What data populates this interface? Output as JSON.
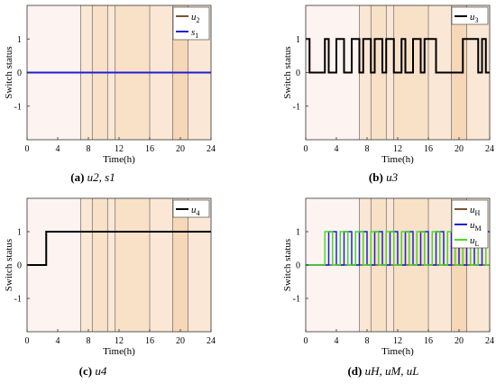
{
  "band_colors": [
    "#fdf3f0",
    "#fbe7d5",
    "#f9e1c8",
    "#f6d7b8"
  ],
  "y_tick_labels": [
    "1",
    "0",
    "-1"
  ],
  "x_tick_labels": [
    "0",
    "4",
    "8",
    "12",
    "16",
    "20",
    "24"
  ],
  "chart_data": [
    {
      "type": "line",
      "caption_letter": "(a)",
      "caption_text": "u2, s1",
      "xlabel": "Time(h)",
      "ylabel": "Switch status",
      "xlim": [
        0,
        24
      ],
      "ylim": [
        -2,
        2
      ],
      "bands": [
        {
          "from": 0,
          "to": 7,
          "level": 0
        },
        {
          "from": 7,
          "to": 8.5,
          "level": 1
        },
        {
          "from": 8.5,
          "to": 10.5,
          "level": 2
        },
        {
          "from": 10.5,
          "to": 11.5,
          "level": 1
        },
        {
          "from": 11.5,
          "to": 16,
          "level": 2
        },
        {
          "from": 16,
          "to": 19,
          "level": 1
        },
        {
          "from": 19,
          "to": 21,
          "level": 3
        },
        {
          "from": 21,
          "to": 24,
          "level": 1
        }
      ],
      "series": [
        {
          "name": "u2",
          "color": "#7a5230",
          "width": 2,
          "x": [
            0,
            24
          ],
          "y": [
            0,
            0
          ]
        },
        {
          "name": "s1",
          "color": "#1f1fd6",
          "width": 2,
          "x": [
            0,
            24
          ],
          "y": [
            0,
            0
          ]
        }
      ]
    },
    {
      "type": "line",
      "caption_letter": "(b)",
      "caption_text": "u3",
      "xlabel": "Time(h)",
      "ylabel": "Switch status",
      "xlim": [
        0,
        24
      ],
      "ylim": [
        -2,
        2
      ],
      "bands": [
        {
          "from": 0,
          "to": 7,
          "level": 0
        },
        {
          "from": 7,
          "to": 8.5,
          "level": 1
        },
        {
          "from": 8.5,
          "to": 10.5,
          "level": 2
        },
        {
          "from": 10.5,
          "to": 11.5,
          "level": 1
        },
        {
          "from": 11.5,
          "to": 16,
          "level": 2
        },
        {
          "from": 16,
          "to": 19,
          "level": 1
        },
        {
          "from": 19,
          "to": 21,
          "level": 3
        },
        {
          "from": 21,
          "to": 24,
          "level": 1
        }
      ],
      "series": [
        {
          "name": "u3",
          "color": "#000000",
          "width": 2,
          "x": [
            0,
            0.5,
            0.5,
            2.5,
            2.5,
            3,
            3,
            4,
            4,
            5,
            5,
            6,
            6,
            7,
            7,
            7.5,
            7.5,
            8.5,
            8.5,
            9,
            9,
            10,
            10,
            10.5,
            10.5,
            11.5,
            11.5,
            12.5,
            12.5,
            13,
            13,
            14,
            14,
            15,
            15,
            15.5,
            15.5,
            17,
            17,
            20.5,
            20.5,
            22.5,
            22.5,
            23,
            23,
            23.5,
            23.5,
            24
          ],
          "y": [
            1,
            1,
            0,
            0,
            1,
            1,
            0,
            0,
            1,
            1,
            0,
            0,
            1,
            1,
            0,
            0,
            1,
            1,
            0,
            0,
            1,
            1,
            0,
            0,
            1,
            1,
            0,
            0,
            1,
            1,
            0,
            0,
            1,
            1,
            0,
            0,
            1,
            1,
            0,
            0,
            1,
            1,
            0,
            0,
            1,
            1,
            0,
            0
          ]
        }
      ]
    },
    {
      "type": "line",
      "caption_letter": "(c)",
      "caption_text": "u4",
      "xlabel": "Time(h)",
      "ylabel": "Switch status",
      "xlim": [
        0,
        24
      ],
      "ylim": [
        -2,
        2
      ],
      "bands": [
        {
          "from": 0,
          "to": 7,
          "level": 0
        },
        {
          "from": 7,
          "to": 8.5,
          "level": 1
        },
        {
          "from": 8.5,
          "to": 10.5,
          "level": 2
        },
        {
          "from": 10.5,
          "to": 11.5,
          "level": 1
        },
        {
          "from": 11.5,
          "to": 16,
          "level": 2
        },
        {
          "from": 16,
          "to": 19,
          "level": 1
        },
        {
          "from": 19,
          "to": 21,
          "level": 3
        },
        {
          "from": 21,
          "to": 24,
          "level": 1
        }
      ],
      "series": [
        {
          "name": "u4",
          "color": "#000000",
          "width": 2,
          "x": [
            0,
            2.5,
            2.5,
            24
          ],
          "y": [
            0,
            0,
            1,
            1
          ]
        }
      ]
    },
    {
      "type": "line",
      "caption_letter": "(d)",
      "caption_text": "uH, uM, uL",
      "xlabel": "Time(h)",
      "ylabel": "Switch status",
      "xlim": [
        0,
        24
      ],
      "ylim": [
        -2,
        2
      ],
      "bands": [
        {
          "from": 0,
          "to": 7,
          "level": 0
        },
        {
          "from": 7,
          "to": 8.5,
          "level": 1
        },
        {
          "from": 8.5,
          "to": 10.5,
          "level": 2
        },
        {
          "from": 10.5,
          "to": 11.5,
          "level": 1
        },
        {
          "from": 11.5,
          "to": 16,
          "level": 2
        },
        {
          "from": 16,
          "to": 19,
          "level": 1
        },
        {
          "from": 19,
          "to": 21,
          "level": 3
        },
        {
          "from": 21,
          "to": 24,
          "level": 1
        }
      ],
      "series": [
        {
          "name": "uH",
          "color": "#7a5230",
          "width": 1.5,
          "x": [
            0,
            24
          ],
          "y": [
            0,
            0
          ]
        },
        {
          "name": "uM",
          "color": "#1f1fd6",
          "width": 1.5,
          "x": [
            0,
            3,
            3,
            4,
            4,
            5,
            5,
            6,
            6,
            7,
            7,
            8,
            8,
            9,
            9,
            10,
            10,
            11,
            11,
            12,
            12,
            13,
            13,
            14,
            14,
            15,
            15,
            16,
            16,
            17,
            17,
            18,
            18,
            19,
            19,
            20,
            20,
            21,
            21,
            22,
            22,
            23,
            23,
            24
          ],
          "y": [
            0,
            0,
            1,
            1,
            0,
            0,
            1,
            1,
            0,
            0,
            1,
            1,
            0,
            0,
            1,
            1,
            0,
            0,
            1,
            1,
            0,
            0,
            1,
            1,
            0,
            0,
            1,
            1,
            0,
            0,
            1,
            1,
            0,
            0,
            1,
            1,
            0,
            0,
            1,
            1,
            0,
            0,
            1,
            1
          ]
        },
        {
          "name": "uL",
          "color": "#44dd22",
          "width": 1.5,
          "x": [
            0,
            2.5,
            2.5,
            3.5,
            3.5,
            4.5,
            4.5,
            5.5,
            5.5,
            6.5,
            6.5,
            7.5,
            7.5,
            8.5,
            8.5,
            9.5,
            9.5,
            10.5,
            10.5,
            11.5,
            11.5,
            12.5,
            12.5,
            13.5,
            13.5,
            14.5,
            14.5,
            15.5,
            15.5,
            16.5,
            16.5,
            17.5,
            17.5,
            18.5,
            18.5,
            19.5,
            19.5,
            20.5,
            20.5,
            21.5,
            21.5,
            22.5,
            22.5,
            23.5,
            23.5,
            24
          ],
          "y": [
            0,
            0,
            1,
            1,
            0,
            0,
            1,
            1,
            0,
            0,
            1,
            1,
            0,
            0,
            1,
            1,
            0,
            0,
            1,
            1,
            0,
            0,
            1,
            1,
            0,
            0,
            1,
            1,
            0,
            0,
            1,
            1,
            0,
            0,
            1,
            1,
            0,
            0,
            1,
            1,
            0,
            0,
            1,
            1,
            0,
            0
          ]
        }
      ]
    }
  ]
}
